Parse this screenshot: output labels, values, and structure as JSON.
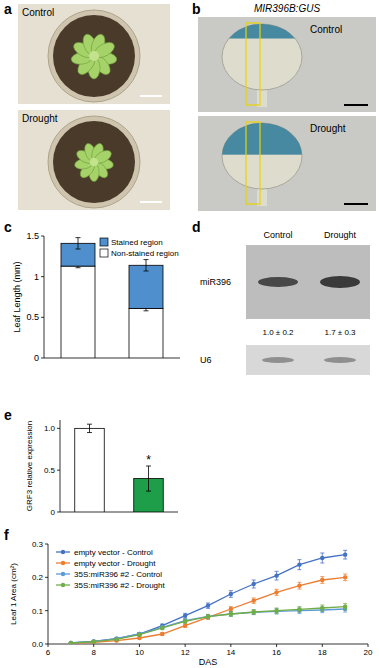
{
  "panels": {
    "labels": [
      "a",
      "b",
      "c",
      "d",
      "e",
      "f"
    ],
    "a": {
      "photos": [
        "Control",
        "Drought"
      ]
    },
    "b": {
      "title": "MIR396B:GUS",
      "photos": [
        "Control",
        "Drought"
      ]
    },
    "d": {
      "columns": [
        "Control",
        "Drought"
      ],
      "rows": [
        "miR396",
        "U6"
      ],
      "quantities": [
        "1.0 ± 0.2",
        "1.7 ± 0.3"
      ]
    }
  },
  "chart_data": [
    {
      "type": "bar",
      "stacked": true,
      "categories": [
        null,
        null
      ],
      "y_label": "Leaf Length (mm)",
      "ylim": [
        0,
        1.5
      ],
      "yticks": [
        0,
        0.5,
        1,
        1.5
      ],
      "tick_labels": "y",
      "legend": "top-right",
      "series": [
        {
          "name": "Non-stained region",
          "color": "#ffffff",
          "values": [
            1.13,
            0.61
          ],
          "errors": [
            0.02,
            0.03
          ]
        },
        {
          "name": "Stained region",
          "color": "#4f8fcd",
          "values": [
            0.28,
            0.53
          ],
          "errors": [
            0.07,
            0.07
          ]
        }
      ]
    },
    {
      "type": "bar",
      "categories": [
        null,
        null
      ],
      "y_label": "GRF3 relative expression",
      "ylim": [
        0,
        1.1
      ],
      "yticks": [
        0,
        0.5,
        {
          "value": 1,
          "label": "1.0"
        }
      ],
      "tick_labels": "y",
      "values": [
        1.0,
        0.4
      ],
      "errors": [
        0.05,
        0.15
      ],
      "colors": [
        "#ffffff",
        "#1e9e48"
      ],
      "significance": [
        null,
        "*"
      ]
    },
    {
      "type": "line",
      "x_label": "DAS",
      "y_label": "Leaf 1 Area (cm²)",
      "xlim": [
        6,
        20
      ],
      "xticks": [
        6,
        8,
        10,
        12,
        14,
        16,
        18,
        20
      ],
      "ylim": [
        0,
        0.3
      ],
      "yticks": [
        {
          "value": 0,
          "label": "0.0"
        },
        {
          "value": 0.1,
          "label": "0.1"
        },
        {
          "value": 0.2,
          "label": "0.2"
        },
        {
          "value": 0.3,
          "label": "0.3"
        }
      ],
      "legend": "top-left",
      "marker": "circle",
      "x": [
        7,
        8,
        9,
        10,
        11,
        12,
        13,
        14,
        15,
        16,
        17,
        18,
        19
      ],
      "series": [
        {
          "name": "empty vector - Control",
          "color": "#4472c4",
          "values": [
            0.003,
            0.008,
            0.016,
            0.03,
            0.055,
            0.085,
            0.115,
            0.15,
            0.18,
            0.205,
            0.238,
            0.258,
            0.268
          ],
          "errors": [
            0.001,
            0.002,
            0.003,
            0.004,
            0.005,
            0.007,
            0.008,
            0.01,
            0.012,
            0.013,
            0.015,
            0.015,
            0.013
          ]
        },
        {
          "name": "empty vector - Drought",
          "color": "#ed7d31",
          "values": [
            0.002,
            0.005,
            0.01,
            0.018,
            0.03,
            0.055,
            0.08,
            0.105,
            0.13,
            0.155,
            0.175,
            0.192,
            0.2
          ],
          "errors": [
            0.001,
            0.001,
            0.002,
            0.003,
            0.004,
            0.005,
            0.006,
            0.007,
            0.008,
            0.009,
            0.01,
            0.01,
            0.01
          ]
        },
        {
          "name": "35S:miR396 #2 - Control",
          "color": "#5b9bd5",
          "values": [
            0.003,
            0.008,
            0.016,
            0.03,
            0.05,
            0.07,
            0.083,
            0.09,
            0.095,
            0.098,
            0.1,
            0.102,
            0.105
          ],
          "errors": [
            0.001,
            0.002,
            0.003,
            0.004,
            0.005,
            0.006,
            0.006,
            0.007,
            0.007,
            0.008,
            0.008,
            0.008,
            0.009
          ]
        },
        {
          "name": "35S:miR396 #2 - Drought",
          "color": "#70ad47",
          "values": [
            0.003,
            0.007,
            0.014,
            0.028,
            0.048,
            0.068,
            0.082,
            0.09,
            0.096,
            0.1,
            0.104,
            0.108,
            0.112
          ],
          "errors": [
            0.001,
            0.002,
            0.003,
            0.004,
            0.005,
            0.006,
            0.006,
            0.007,
            0.007,
            0.008,
            0.008,
            0.009,
            0.009
          ]
        }
      ]
    }
  ]
}
